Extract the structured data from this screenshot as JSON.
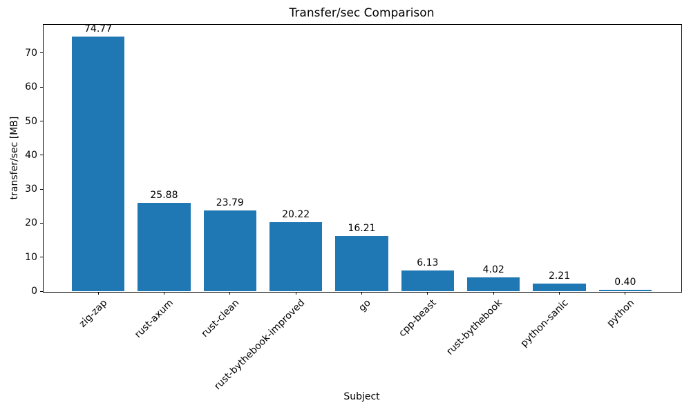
{
  "chart_data": {
    "type": "bar",
    "title": "Transfer/sec Comparison",
    "xlabel": "Subject",
    "ylabel": "transfer/sec [MB]",
    "categories": [
      "zig-zap",
      "rust-axum",
      "rust-clean",
      "rust-bythebook-improved",
      "go",
      "cpp-beast",
      "rust-bythebook",
      "python-sanic",
      "python"
    ],
    "values": [
      74.77,
      25.88,
      23.79,
      20.22,
      16.21,
      6.13,
      4.02,
      2.21,
      0.4
    ],
    "value_labels": [
      "74.77",
      "25.88",
      "23.79",
      "20.22",
      "16.21",
      "6.13",
      "4.02",
      "2.21",
      "0.40"
    ],
    "yticks": [
      0,
      10,
      20,
      30,
      40,
      50,
      60,
      70
    ],
    "ylim": [
      0,
      78.5
    ],
    "bar_color": "#1f77b4",
    "axis_color": "#000000",
    "grid": false,
    "legend": null,
    "x_tick_rotation": 45,
    "bar_width_fraction": 0.8
  }
}
